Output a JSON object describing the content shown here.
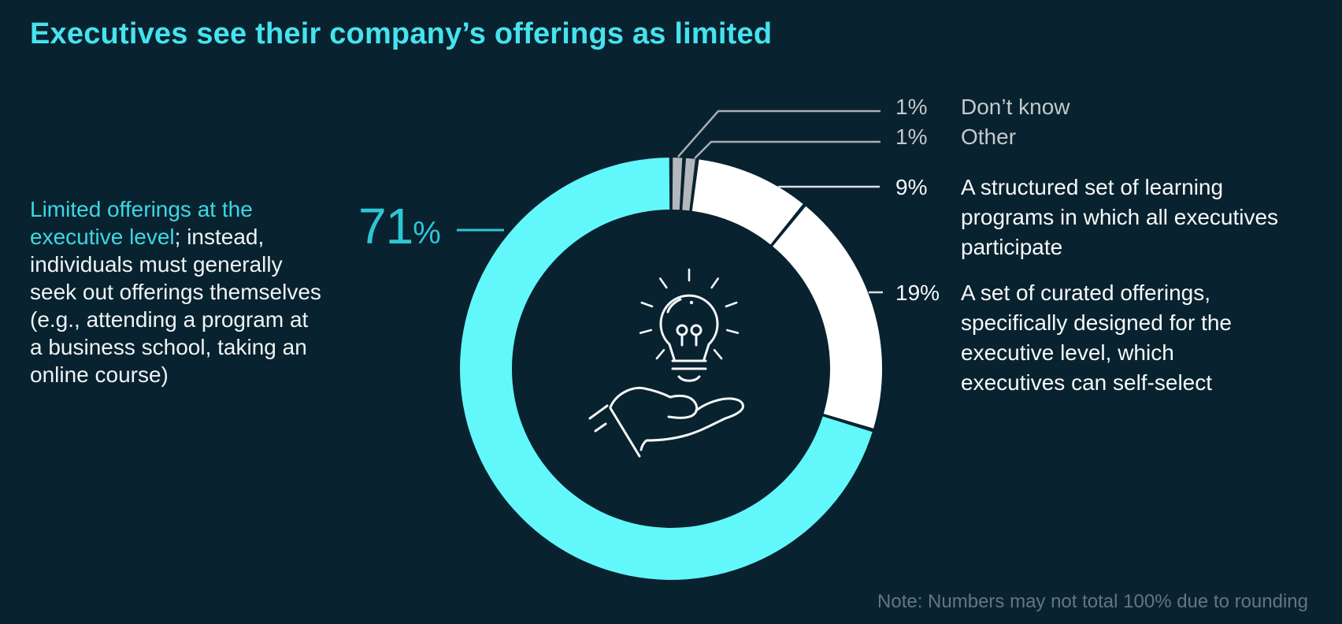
{
  "title": "Executives see their company’s offerings as limited",
  "callout": {
    "highlight": "Limited offerings at the\nexecutive level",
    "rest": "; instead,\nindividuals must generally\nseek out offerings themselves\n(e.g., attending a program at\na business school, taking an\nonline course)"
  },
  "donut_label": {
    "value": "71",
    "suffix": "%"
  },
  "legend": {
    "rows": [
      {
        "value": "1%",
        "label": "Don’t know"
      },
      {
        "value": "1%",
        "label": "Other"
      },
      {
        "value": "9%",
        "label": "A structured set of learning\nprograms in which all executives\nparticipate"
      },
      {
        "value": "19%",
        "label": "A set of curated offerings,\nspecifically designed for the\nexecutive level, which\nexecutives can self-select"
      }
    ]
  },
  "note": "Note: Numbers may not total 100% due to rounding",
  "colors": {
    "background": "#09222F",
    "title_cyan": "#45E3EE",
    "callout_cyan": "#3CD8E2",
    "big_label_teal": "#2FC6D4",
    "donut_cyan": "#62F7FB",
    "donut_white": "#FFFFFF",
    "donut_gray": "#B3B8BC",
    "muted_text": "#C3C9CD",
    "note_gray": "#657580",
    "icon_stroke": "#F4F7F8"
  },
  "chart_data": {
    "type": "pie",
    "subtype": "donut",
    "title": "Executives see their company’s offerings as limited",
    "units": "%",
    "direction": "clockwise",
    "start_angle_deg": 0,
    "segments": [
      {
        "key": "dont-know",
        "label": "Don’t know",
        "value": 1,
        "color": "#B3B8BC"
      },
      {
        "key": "other",
        "label": "Other",
        "value": 1,
        "color": "#B3B8BC"
      },
      {
        "key": "structured",
        "label": "A structured set of learning programs in which all executives participate",
        "value": 9,
        "color": "#FFFFFF"
      },
      {
        "key": "curated",
        "label": "A set of curated offerings, specifically designed for the executive level, which executives can self-select",
        "value": 19,
        "color": "#FFFFFF"
      },
      {
        "key": "limited",
        "label": "Limited offerings at the executive level; instead, individuals must generally seek out offerings themselves (e.g., attending a program at a business school, taking an online course)",
        "value": 71,
        "color": "#62F7FB"
      }
    ],
    "note": "Note: Numbers may not total 100% due to rounding"
  }
}
